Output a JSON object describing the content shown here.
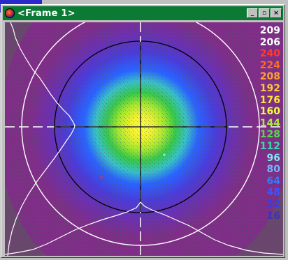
{
  "window": {
    "title": "<Frame 1>",
    "controls": {
      "minimize": "_",
      "maximize": "▫",
      "close": "×"
    },
    "titlebar_color": "#0a7a34"
  },
  "scale": {
    "labels": [
      {
        "text": "209",
        "color": "#ffffff"
      },
      {
        "text": "206",
        "color": "#ffffff"
      },
      {
        "text": "240",
        "color": "#ff3b2f"
      },
      {
        "text": "224",
        "color": "#ff6a2a"
      },
      {
        "text": "208",
        "color": "#ffa032"
      },
      {
        "text": "192",
        "color": "#ffc83c"
      },
      {
        "text": "176",
        "color": "#ffe838"
      },
      {
        "text": "160",
        "color": "#f4ff3a"
      },
      {
        "text": "144",
        "color": "#a8ef3a"
      },
      {
        "text": "128",
        "color": "#5ad84c"
      },
      {
        "text": "112",
        "color": "#3ed9a8"
      },
      {
        "text": "96",
        "color": "#7ee8f0"
      },
      {
        "text": "80",
        "color": "#6fb7ff"
      },
      {
        "text": "64",
        "color": "#2f7dff"
      },
      {
        "text": "48",
        "color": "#3656ff"
      },
      {
        "text": "32",
        "color": "#3a3ce0"
      },
      {
        "text": "16",
        "color": "#4030b8"
      }
    ]
  },
  "colors": {
    "background": "#7e2e86",
    "beam_outer": "#5a44c4",
    "beam_blue": "#2a64ff",
    "beam_cyan": "#39c0c8",
    "beam_green": "#38c84a",
    "beam_core": "#f0f030"
  }
}
